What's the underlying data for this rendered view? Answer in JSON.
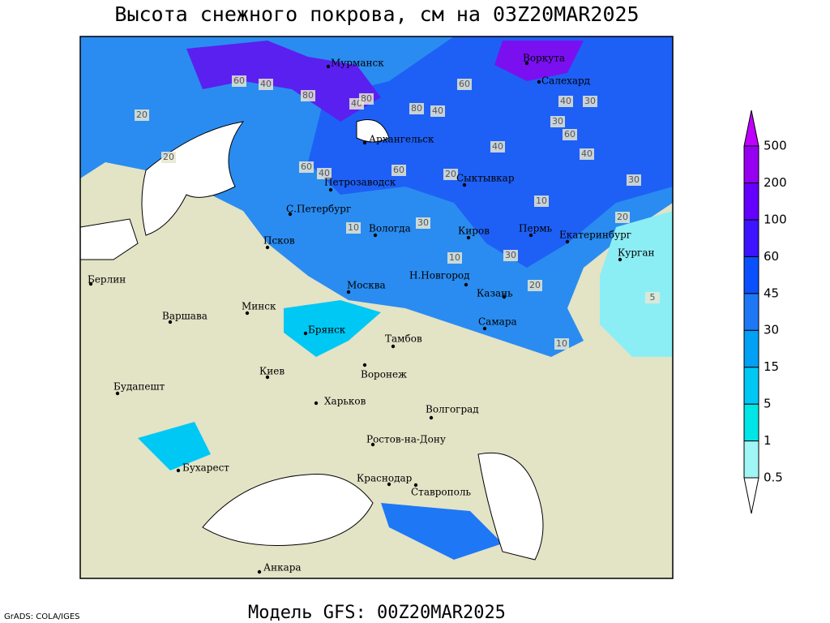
{
  "title": "Высота снежного покрова, см на 03Z20MAR2025",
  "footer": "Модель GFS: 00Z20MAR2025",
  "credit": "GrADS: COLA/IGES",
  "legend": {
    "levels": [
      0.5,
      1,
      5,
      15,
      30,
      45,
      60,
      100,
      200,
      500
    ],
    "colors": [
      "#ffffff",
      "#a0f5f5",
      "#00e6e6",
      "#00c8f5",
      "#00a0f5",
      "#1e78f5",
      "#0a50ff",
      "#3c14ff",
      "#6400ff",
      "#9600f0",
      "#be00ff"
    ]
  },
  "cities": [
    "Мурманск",
    "Воркута",
    "Салехард",
    "Архангельск",
    "Сыктывкар",
    "Петрозаводск",
    "С.Петербург",
    "Вологда",
    "Киров",
    "Пермь",
    "Екатеринбург",
    "Курган",
    "Псков",
    "Берлин",
    "Н.Новгород",
    "Москва",
    "Казань",
    "Минск",
    "Варшава",
    "Самара",
    "Брянск",
    "Тамбов",
    "Киев",
    "Воронеж",
    "Будапешт",
    "Харьков",
    "Волгоград",
    "Ростов-на-Дону",
    "Бухарест",
    "Краснодар",
    "Ставрополь",
    "Анкара"
  ],
  "contour_labels": [
    60,
    40,
    80,
    40,
    80,
    60,
    80,
    40,
    30,
    40,
    60,
    40,
    20,
    20,
    60,
    40,
    60,
    40,
    30,
    20,
    30,
    20,
    10,
    30,
    10,
    20,
    5,
    10,
    10,
    30
  ]
}
